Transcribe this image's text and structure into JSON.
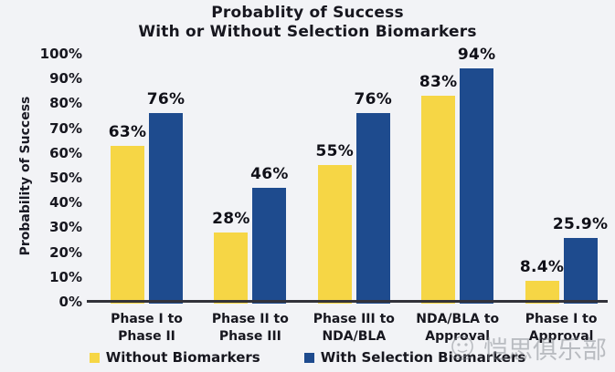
{
  "chart_data": {
    "type": "bar",
    "title_line1": "Probablity of Success",
    "title_line2": "With or Without Selection Biomarkers",
    "ylabel": "Probability of Success",
    "ylim": [
      0,
      100
    ],
    "ytick_step": 10,
    "ytick_suffix": "%",
    "grid": false,
    "legend_position": "bottom",
    "categories": [
      [
        "Phase I to",
        "Phase II"
      ],
      [
        "Phase II to",
        "Phase III"
      ],
      [
        "Phase III to",
        "NDA/BLA"
      ],
      [
        "NDA/BLA to",
        "Approval"
      ],
      [
        "Phase I to",
        "Approval"
      ]
    ],
    "series": [
      {
        "name": "Without Biomarkers",
        "color": "#F6D645",
        "values": [
          63,
          28,
          55,
          83,
          8.4
        ],
        "labels": [
          "63%",
          "28%",
          "55%",
          "83%",
          "8.4%"
        ]
      },
      {
        "name": "With Selection Biomarkers",
        "color": "#1E4B8E",
        "values": [
          76,
          46,
          76,
          94,
          25.9
        ],
        "labels": [
          "76%",
          "46%",
          "76%",
          "94%",
          "25.9%"
        ]
      }
    ]
  },
  "colors": {
    "background": "#f2f3f6",
    "axis_line": "#32323a",
    "text": "#17171f",
    "watermark": "#82878d"
  },
  "watermark": {
    "text": "恺思俱乐部",
    "icon": "face-logo"
  }
}
